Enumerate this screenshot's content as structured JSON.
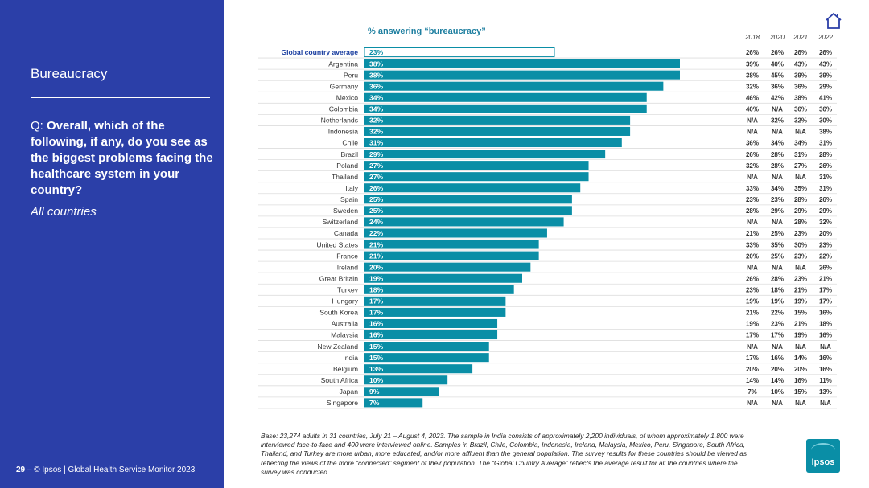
{
  "sidebar": {
    "title": "Bureaucracy",
    "question_prefix": "Q: ",
    "question": "Overall, which of the following, if any, do you see as the biggest problems facing the healthcare system in your country?",
    "subtitle": "All countries",
    "footer_page": "29",
    "footer_text": " – © Ipsos | Global Health Service Monitor 2023"
  },
  "base_note": "Base: 23,274 adults in 31 countries, July 21 – August 4, 2023. The sample in India consists of approximately 2,200 individuals, of whom approximately 1,800 were interviewed face-to-face and 400 were interviewed online. Samples in Brazil, Chile, Colombia, Indonesia, Ireland, Malaysia, Mexico, Peru, Singapore, South Africa, Thailand, and Turkey are more urban, more educated, and/or more affluent than the general population. The survey results for these countries should be viewed as reflecting the views of the more “connected” segment of their population. The “Global Country Average” reflects the average result for all the countries where the survey was conducted.",
  "logo_text": "Ipsos",
  "icons": {
    "home": "home-icon"
  },
  "colors": {
    "sidebar": "#2b3fa8",
    "bar": "#0a8ea6",
    "title": "#1e7fa0",
    "highlight": "#1a3ea0"
  },
  "chart_data": {
    "type": "bar",
    "orientation": "horizontal",
    "title": "% answering “bureaucracy”",
    "highlight_category": "Global country average",
    "categories": [
      "Global country average",
      "Argentina",
      "Peru",
      "Germany",
      "Mexico",
      "Colombia",
      "Netherlands",
      "Indonesia",
      "Chile",
      "Brazil",
      "Poland",
      "Thailand",
      "Italy",
      "Spain",
      "Sweden",
      "Switzerland",
      "Canada",
      "United States",
      "France",
      "Ireland",
      "Great Britain",
      "Turkey",
      "Hungary",
      "South Korea",
      "Australia",
      "Malaysia",
      "New Zealand",
      "India",
      "Belgium",
      "South Africa",
      "Japan",
      "Singapore"
    ],
    "values": [
      23,
      38,
      38,
      36,
      34,
      34,
      32,
      32,
      31,
      29,
      27,
      27,
      26,
      25,
      25,
      24,
      22,
      21,
      21,
      20,
      19,
      18,
      17,
      17,
      16,
      16,
      15,
      15,
      13,
      10,
      9,
      7
    ],
    "value_labels": [
      "23%",
      "38%",
      "38%",
      "36%",
      "34%",
      "34%",
      "32%",
      "32%",
      "31%",
      "29%",
      "27%",
      "27%",
      "26%",
      "25%",
      "25%",
      "24%",
      "22%",
      "21%",
      "21%",
      "20%",
      "19%",
      "18%",
      "17%",
      "17%",
      "16%",
      "16%",
      "15%",
      "15%",
      "13%",
      "10%",
      "9%",
      "7%"
    ],
    "xlim": [
      0,
      40
    ],
    "trend_years": [
      "2018",
      "2020",
      "2021",
      "2022"
    ],
    "trend": [
      [
        "26%",
        "26%",
        "26%",
        "26%"
      ],
      [
        "39%",
        "40%",
        "43%",
        "43%"
      ],
      [
        "38%",
        "45%",
        "39%",
        "39%"
      ],
      [
        "32%",
        "36%",
        "36%",
        "29%"
      ],
      [
        "46%",
        "42%",
        "38%",
        "41%"
      ],
      [
        "40%",
        "N/A",
        "36%",
        "36%"
      ],
      [
        "N/A",
        "32%",
        "32%",
        "30%"
      ],
      [
        "N/A",
        "N/A",
        "N/A",
        "38%"
      ],
      [
        "36%",
        "34%",
        "34%",
        "31%"
      ],
      [
        "26%",
        "28%",
        "31%",
        "28%"
      ],
      [
        "32%",
        "28%",
        "27%",
        "26%"
      ],
      [
        "N/A",
        "N/A",
        "N/A",
        "31%"
      ],
      [
        "33%",
        "34%",
        "35%",
        "31%"
      ],
      [
        "23%",
        "23%",
        "28%",
        "26%"
      ],
      [
        "28%",
        "29%",
        "29%",
        "29%"
      ],
      [
        "N/A",
        "N/A",
        "28%",
        "32%"
      ],
      [
        "21%",
        "25%",
        "23%",
        "20%"
      ],
      [
        "33%",
        "35%",
        "30%",
        "23%"
      ],
      [
        "20%",
        "25%",
        "23%",
        "22%"
      ],
      [
        "N/A",
        "N/A",
        "N/A",
        "26%"
      ],
      [
        "26%",
        "28%",
        "23%",
        "21%"
      ],
      [
        "23%",
        "18%",
        "21%",
        "17%"
      ],
      [
        "19%",
        "19%",
        "19%",
        "17%"
      ],
      [
        "21%",
        "22%",
        "15%",
        "16%"
      ],
      [
        "19%",
        "23%",
        "21%",
        "18%"
      ],
      [
        "17%",
        "17%",
        "19%",
        "16%"
      ],
      [
        "N/A",
        "N/A",
        "N/A",
        "N/A"
      ],
      [
        "17%",
        "16%",
        "14%",
        "16%"
      ],
      [
        "20%",
        "20%",
        "20%",
        "16%"
      ],
      [
        "14%",
        "14%",
        "16%",
        "11%"
      ],
      [
        "7%",
        "10%",
        "15%",
        "13%"
      ],
      [
        "N/A",
        "N/A",
        "N/A",
        "N/A"
      ]
    ]
  }
}
